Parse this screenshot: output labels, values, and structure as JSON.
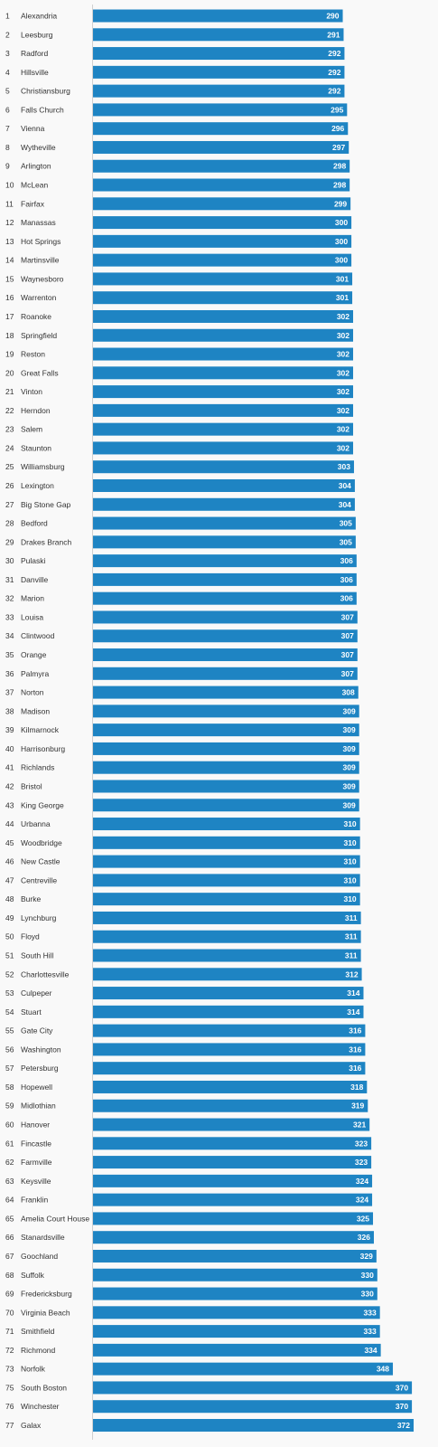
{
  "colors": {
    "bar": "#1e84c3",
    "axis": "#d0d0d0",
    "label_text": "#333333",
    "value_text": "#ffffff",
    "background": "#f9f9f9"
  },
  "chart_data": {
    "type": "bar",
    "orientation": "horizontal",
    "title": "",
    "xlabel": "",
    "ylabel": "",
    "xlim": [
      0,
      372
    ],
    "grid": false,
    "legend": "none",
    "categories": [
      "Alexandria",
      "Leesburg",
      "Radford",
      "Hillsville",
      "Christiansburg",
      "Falls Church",
      "Vienna",
      "Wytheville",
      "Arlington",
      "McLean",
      "Fairfax",
      "Manassas",
      "Hot Springs",
      "Martinsville",
      "Waynesboro",
      "Warrenton",
      "Roanoke",
      "Springfield",
      "Reston",
      "Great Falls",
      "Vinton",
      "Herndon",
      "Salem",
      "Staunton",
      "Williamsburg",
      "Lexington",
      "Big Stone Gap",
      "Bedford",
      "Drakes Branch",
      "Pulaski",
      "Danville",
      "Marion",
      "Louisa",
      "Clintwood",
      "Orange",
      "Palmyra",
      "Norton",
      "Madison",
      "Kilmarnock",
      "Harrisonburg",
      "Richlands",
      "Bristol",
      "King George",
      "Urbanna",
      "Woodbridge",
      "New Castle",
      "Centreville",
      "Burke",
      "Lynchburg",
      "Floyd",
      "South Hill",
      "Charlottesville",
      "Culpeper",
      "Stuart",
      "Gate City",
      "Washington",
      "Petersburg",
      "Hopewell",
      "Midlothian",
      "Hanover",
      "Fincastle",
      "Farmville",
      "Keysville",
      "Franklin",
      "Amelia Court House",
      "Stanardsville",
      "Goochland",
      "Suffolk",
      "Fredericksburg",
      "Virginia Beach",
      "Smithfield",
      "Richmond",
      "Norfolk",
      "South Boston",
      "Winchester",
      "Galax"
    ],
    "ranks": [
      "1",
      "2",
      "3",
      "4",
      "5",
      "6",
      "7",
      "8",
      "9",
      "10",
      "11",
      "12",
      "13",
      "14",
      "15",
      "16",
      "17",
      "18",
      "19",
      "20",
      "21",
      "22",
      "23",
      "24",
      "25",
      "26",
      "27",
      "28",
      "29",
      "30",
      "31",
      "32",
      "33",
      "34",
      "35",
      "36",
      "37",
      "38",
      "39",
      "40",
      "41",
      "42",
      "43",
      "44",
      "45",
      "46",
      "47",
      "48",
      "49",
      "50",
      "51",
      "52",
      "53",
      "54",
      "55",
      "56",
      "57",
      "58",
      "59",
      "60",
      "61",
      "62",
      "63",
      "64",
      "65",
      "66",
      "67",
      "68",
      "69",
      "70",
      "71",
      "72",
      "73",
      "75",
      "76",
      "77"
    ],
    "values": [
      290,
      291,
      292,
      292,
      292,
      295,
      296,
      297,
      298,
      298,
      299,
      300,
      300,
      300,
      301,
      301,
      302,
      302,
      302,
      302,
      302,
      302,
      302,
      302,
      303,
      304,
      304,
      305,
      305,
      306,
      306,
      306,
      307,
      307,
      307,
      307,
      308,
      309,
      309,
      309,
      309,
      309,
      309,
      310,
      310,
      310,
      310,
      310,
      311,
      311,
      311,
      312,
      314,
      314,
      316,
      316,
      316,
      318,
      319,
      321,
      323,
      323,
      324,
      324,
      325,
      326,
      329,
      330,
      330,
      333,
      333,
      334,
      348,
      370,
      370,
      372
    ]
  }
}
